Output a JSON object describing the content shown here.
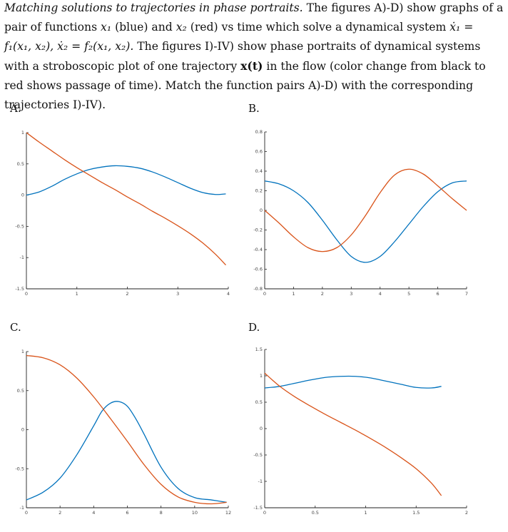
{
  "intro": {
    "title": "Matching solutions to trajectories in phase portraits.",
    "s1": "The figures A)-D) show graphs of a pair of functions",
    "x1": "x₁",
    "blue": "(blue) and",
    "x2": "x₂",
    "red": "(red) vs time which solve a dynamical system",
    "eq1": "ẋ₁ = f₁(x₁, x₂), ẋ₂ = f₂(x₁, x₂).",
    "s2": "The figures I)-IV) show phase portraits of dynamical systems with a stroboscopic plot of one trajectory",
    "xt": "x(t)",
    "s3": "in the flow (color change from black to red shows passage of time). Match the function pairs A)-D) with the corresponding trajectories I)-IV)."
  },
  "colors": {
    "x1": "#0072BD",
    "x2": "#D95319"
  },
  "chart_data": [
    {
      "type": "line",
      "label": "A.",
      "xlim": [
        0,
        4
      ],
      "ylim": [
        -1.5,
        1
      ],
      "xticks": [
        "0",
        "1",
        "2",
        "3",
        "4"
      ],
      "xtick_values": [
        0,
        1,
        2,
        3,
        4
      ],
      "yticks": [
        "1",
        "0.5",
        "0",
        "-0.5",
        "-1",
        "-1.5"
      ],
      "ytick_values": [
        1,
        0.5,
        0,
        -0.5,
        -1,
        -1.5
      ],
      "series": [
        {
          "color": "#0072BD",
          "x": [
            0,
            0.25,
            0.5,
            0.75,
            1,
            1.25,
            1.5,
            1.75,
            2,
            2.25,
            2.5,
            2.75,
            3,
            3.25,
            3.5,
            3.75,
            3.95
          ],
          "y": [
            0,
            0.05,
            0.14,
            0.25,
            0.34,
            0.41,
            0.45,
            0.47,
            0.46,
            0.43,
            0.37,
            0.29,
            0.2,
            0.11,
            0.04,
            0.01,
            0.02
          ]
        },
        {
          "color": "#D95319",
          "x": [
            0,
            0.25,
            0.5,
            0.75,
            1,
            1.25,
            1.5,
            1.75,
            2,
            2.25,
            2.5,
            2.75,
            3,
            3.25,
            3.5,
            3.75,
            3.95
          ],
          "y": [
            1,
            0.85,
            0.71,
            0.57,
            0.44,
            0.32,
            0.2,
            0.09,
            -0.03,
            -0.14,
            -0.26,
            -0.37,
            -0.49,
            -0.62,
            -0.77,
            -0.95,
            -1.12
          ]
        }
      ]
    },
    {
      "type": "line",
      "label": "B.",
      "xlim": [
        0,
        7
      ],
      "ylim": [
        -0.8,
        0.8
      ],
      "xticks": [
        "0",
        "1",
        "2",
        "3",
        "4",
        "5",
        "6",
        "7"
      ],
      "xtick_values": [
        0,
        1,
        2,
        3,
        4,
        5,
        6,
        7
      ],
      "yticks": [
        "0.8",
        "0.6",
        "0.4",
        "0.2",
        "0",
        "-0.2",
        "-0.4",
        "-0.6",
        "-0.8"
      ],
      "ytick_values": [
        0.8,
        0.6,
        0.4,
        0.2,
        0,
        -0.2,
        -0.4,
        -0.6,
        -0.8
      ],
      "series": [
        {
          "color": "#0072BD",
          "x": [
            0,
            0.5,
            1,
            1.5,
            2,
            2.5,
            3,
            3.5,
            4,
            4.5,
            5,
            5.5,
            6,
            6.5,
            7
          ],
          "y": [
            0.3,
            0.27,
            0.2,
            0.08,
            -0.1,
            -0.3,
            -0.47,
            -0.53,
            -0.47,
            -0.32,
            -0.14,
            0.04,
            0.19,
            0.28,
            0.3
          ]
        },
        {
          "color": "#D95319",
          "x": [
            0,
            0.5,
            1,
            1.5,
            2,
            2.5,
            3,
            3.5,
            4,
            4.5,
            5,
            5.5,
            6,
            6.5,
            7
          ],
          "y": [
            0,
            -0.13,
            -0.27,
            -0.38,
            -0.42,
            -0.38,
            -0.25,
            -0.05,
            0.18,
            0.36,
            0.42,
            0.37,
            0.25,
            0.12,
            0
          ]
        }
      ]
    },
    {
      "type": "line",
      "label": "C.",
      "xlim": [
        0,
        12
      ],
      "ylim": [
        -1,
        1
      ],
      "xticks": [
        "0",
        "2",
        "4",
        "6",
        "8",
        "10",
        "12"
      ],
      "xtick_values": [
        0,
        2,
        4,
        6,
        8,
        10,
        12
      ],
      "yticks": [
        "1",
        "0.5",
        "0",
        "-0.5",
        "-1"
      ],
      "ytick_values": [
        1,
        0.5,
        0,
        -0.5,
        -1
      ],
      "series": [
        {
          "color": "#0072BD",
          "x": [
            0,
            1,
            2,
            3,
            4,
            4.5,
            5,
            5.5,
            6,
            6.5,
            7,
            8,
            9,
            10,
            11,
            11.9
          ],
          "y": [
            -0.9,
            -0.8,
            -0.62,
            -0.32,
            0.05,
            0.24,
            0.34,
            0.36,
            0.3,
            0.14,
            -0.06,
            -0.48,
            -0.75,
            -0.87,
            -0.9,
            -0.93
          ]
        },
        {
          "color": "#D95319",
          "x": [
            0,
            1,
            2,
            3,
            4,
            5,
            6,
            7,
            8,
            9,
            10,
            11,
            11.9
          ],
          "y": [
            0.95,
            0.92,
            0.83,
            0.66,
            0.42,
            0.14,
            -0.15,
            -0.45,
            -0.7,
            -0.86,
            -0.93,
            -0.95,
            -0.93
          ]
        }
      ]
    },
    {
      "type": "line",
      "label": "D.",
      "xlim": [
        0,
        2
      ],
      "ylim": [
        -1.5,
        1.5
      ],
      "xticks": [
        "0",
        "0.5",
        "1",
        "1.5",
        "2"
      ],
      "xtick_values": [
        0,
        0.5,
        1,
        1.5,
        2
      ],
      "yticks": [
        "1.5",
        "1",
        "0.5",
        "0",
        "-0.5",
        "-1",
        "-1.5"
      ],
      "ytick_values": [
        1.5,
        1,
        0.5,
        0,
        -0.5,
        -1,
        -1.5
      ],
      "series": [
        {
          "color": "#0072BD",
          "x": [
            0,
            0.15,
            0.3,
            0.45,
            0.6,
            0.75,
            0.9,
            1.05,
            1.2,
            1.35,
            1.5,
            1.65,
            1.75
          ],
          "y": [
            0.77,
            0.8,
            0.86,
            0.92,
            0.97,
            0.99,
            0.99,
            0.96,
            0.9,
            0.84,
            0.78,
            0.77,
            0.8
          ]
        },
        {
          "color": "#D95319",
          "x": [
            0,
            0.15,
            0.3,
            0.45,
            0.6,
            0.75,
            0.9,
            1.05,
            1.2,
            1.35,
            1.5,
            1.65,
            1.75
          ],
          "y": [
            1.05,
            0.8,
            0.6,
            0.43,
            0.27,
            0.12,
            -0.03,
            -0.19,
            -0.36,
            -0.55,
            -0.76,
            -1.03,
            -1.27
          ]
        }
      ]
    }
  ]
}
